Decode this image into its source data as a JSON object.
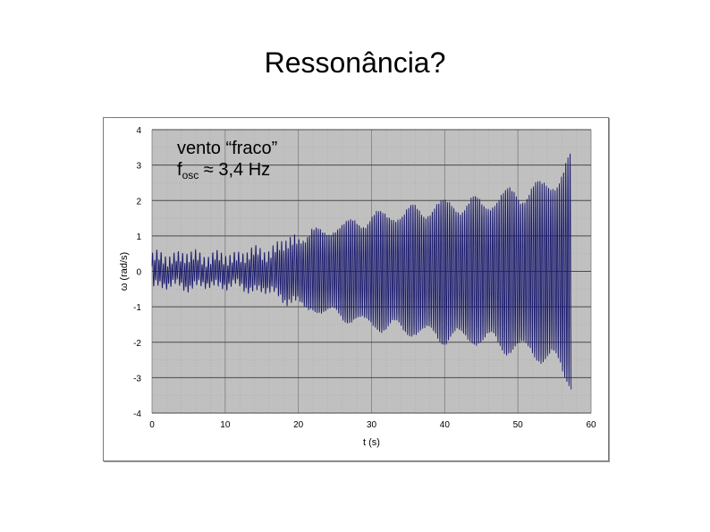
{
  "slide": {
    "title": "Ressonância?"
  },
  "annotation": {
    "line1": "vento “fraco”",
    "line2_prefix": "f",
    "line2_sub": "osc",
    "line2_value": " ≈ 3,4 Hz"
  },
  "colors": {
    "plot_bg": "#c0c0c0",
    "signal": "#1a1a6e",
    "grid_major": "#4a4a4a",
    "grid_minor": "#a8a8a8"
  },
  "chart_data": {
    "type": "line",
    "title": "",
    "xlabel": "t (s)",
    "ylabel": "ω (rad/s)",
    "xlim": [
      0,
      60
    ],
    "ylim": [
      -4,
      4
    ],
    "x_ticks": [
      "0",
      "10",
      "20",
      "30",
      "40",
      "50",
      "60"
    ],
    "y_ticks": [
      "4",
      "3",
      "2",
      "1",
      "0",
      "-1",
      "-2",
      "-3",
      "-4"
    ],
    "grid": true,
    "series": [
      {
        "frequency_hz": 3.4,
        "envelope": {
          "t": [
            0,
            5,
            10,
            13,
            16,
            18,
            20,
            22,
            25,
            30,
            35,
            40,
            45,
            50,
            53,
            55,
            57.3
          ],
          "amplitude": [
            0.35,
            0.4,
            0.35,
            0.45,
            0.55,
            0.7,
            0.95,
            1.05,
            1.2,
            1.5,
            1.65,
            1.85,
            1.9,
            2.2,
            2.3,
            2.6,
            3.0
          ]
        },
        "t_end": 57.3
      }
    ]
  }
}
